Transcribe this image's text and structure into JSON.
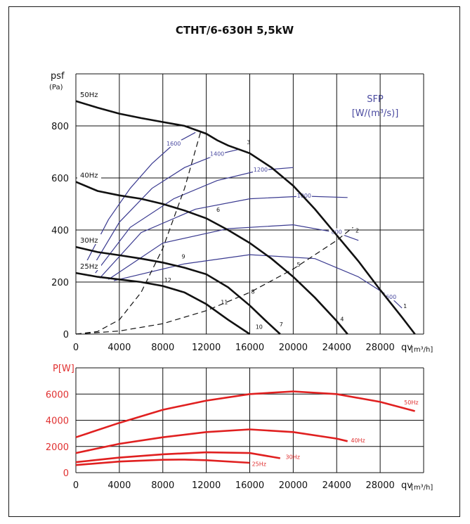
{
  "chart_data": [
    {
      "type": "line",
      "title": "CTHT/6-630H 5,5kW",
      "ylabel": "psf",
      "yunit": "(Pa)",
      "xlabel": "qv",
      "xunit": "[m³/h]",
      "xlim": [
        0,
        32000
      ],
      "ylim": [
        0,
        1000
      ],
      "x_ticks": [
        "0",
        "4000",
        "8000",
        "12000",
        "16000",
        "20000",
        "24000",
        "28000"
      ],
      "y_ticks": [
        "0",
        "200",
        "400",
        "600",
        "800"
      ],
      "grid": true,
      "sfp_label": "SFP",
      "sfp_unit": "[W/(m³/s)]",
      "series": [
        {
          "name": "50Hz",
          "x": [
            0,
            2000,
            4000,
            6000,
            8000,
            10000,
            12000,
            13000,
            14000,
            15000,
            16000,
            18000,
            20000,
            22000,
            24000,
            26000,
            28000,
            30000,
            31200
          ],
          "y": [
            895,
            870,
            847,
            830,
            815,
            800,
            770,
            745,
            725,
            710,
            695,
            640,
            570,
            480,
            380,
            280,
            170,
            65,
            0
          ]
        },
        {
          "name": "40Hz",
          "x": [
            0,
            2000,
            4000,
            6000,
            8000,
            10000,
            12000,
            14000,
            16000,
            18000,
            20000,
            22000,
            24000,
            25000
          ],
          "y": [
            585,
            550,
            533,
            520,
            500,
            475,
            445,
            400,
            350,
            290,
            220,
            140,
            50,
            0
          ]
        },
        {
          "name": "30Hz",
          "x": [
            0,
            2000,
            4000,
            6000,
            8000,
            10000,
            12000,
            14000,
            16000,
            17500,
            18800
          ],
          "y": [
            335,
            315,
            303,
            290,
            275,
            255,
            230,
            180,
            110,
            50,
            0
          ]
        },
        {
          "name": "25Hz",
          "x": [
            0,
            2000,
            4000,
            6000,
            8000,
            10000,
            12000,
            14000,
            16000
          ],
          "y": [
            235,
            220,
            210,
            200,
            185,
            160,
            115,
            55,
            0
          ]
        }
      ],
      "sfp_curves": [
        {
          "label": "1600",
          "x": [
            1000,
            3000,
            5000,
            7000,
            9000,
            11000
          ],
          "y": [
            280,
            440,
            560,
            655,
            730,
            775
          ]
        },
        {
          "label": "1400",
          "x": [
            1500,
            4000,
            7000,
            10000,
            13000,
            15000
          ],
          "y": [
            255,
            430,
            560,
            640,
            690,
            710
          ]
        },
        {
          "label": "1200",
          "x": [
            1800,
            5000,
            9000,
            13000,
            17000,
            20000
          ],
          "y": [
            235,
            410,
            520,
            590,
            630,
            640
          ]
        },
        {
          "label": "1000",
          "x": [
            2200,
            6000,
            11000,
            16000,
            21000,
            25000
          ],
          "y": [
            215,
            390,
            480,
            520,
            530,
            525
          ]
        },
        {
          "label": "800",
          "x": [
            3000,
            8000,
            14000,
            20000,
            24000,
            26000
          ],
          "y": [
            210,
            350,
            405,
            420,
            390,
            360
          ]
        },
        {
          "label": "600",
          "x": [
            3500,
            10000,
            16000,
            22000,
            26000,
            29000,
            30000
          ],
          "y": [
            205,
            270,
            305,
            290,
            220,
            140,
            100
          ]
        }
      ],
      "system_curves": [
        {
          "label": "A",
          "x": [
            0,
            2000,
            4000,
            6000,
            8000,
            10000,
            11500
          ],
          "y": [
            0,
            10,
            55,
            160,
            330,
            560,
            780
          ]
        },
        {
          "label": "B",
          "x": [
            0,
            4000,
            8000,
            12000,
            16000,
            20000,
            24000,
            25500
          ],
          "y": [
            0,
            12,
            40,
            90,
            160,
            250,
            360,
            410
          ]
        }
      ],
      "point_labels": [
        "1",
        "2",
        "3",
        "4",
        "5",
        "6",
        "7",
        "8",
        "9",
        "10",
        "11",
        "12"
      ]
    },
    {
      "type": "line",
      "ylabel": "P[W]",
      "xlabel": "qv",
      "xunit": "[m³/h]",
      "xlim": [
        0,
        32000
      ],
      "ylim": [
        0,
        8000
      ],
      "x_ticks": [
        "0",
        "4000",
        "8000",
        "12000",
        "16000",
        "20000",
        "24000",
        "28000"
      ],
      "y_ticks": [
        "0",
        "2000",
        "4000",
        "6000"
      ],
      "grid": true,
      "series": [
        {
          "name": "50Hz",
          "x": [
            0,
            4000,
            8000,
            12000,
            16000,
            20000,
            24000,
            28000,
            31200
          ],
          "y": [
            2700,
            3800,
            4800,
            5500,
            6000,
            6200,
            6000,
            5400,
            4700
          ]
        },
        {
          "name": "40Hz",
          "x": [
            0,
            4000,
            8000,
            12000,
            16000,
            20000,
            24000,
            25000
          ],
          "y": [
            1500,
            2200,
            2700,
            3100,
            3300,
            3100,
            2600,
            2400
          ]
        },
        {
          "name": "30Hz",
          "x": [
            0,
            4000,
            8000,
            12000,
            16000,
            18800
          ],
          "y": [
            800,
            1150,
            1400,
            1550,
            1500,
            1100
          ]
        },
        {
          "name": "25Hz",
          "x": [
            0,
            4000,
            8000,
            10000,
            12000,
            16000
          ],
          "y": [
            580,
            850,
            980,
            1000,
            950,
            750
          ]
        }
      ]
    }
  ]
}
